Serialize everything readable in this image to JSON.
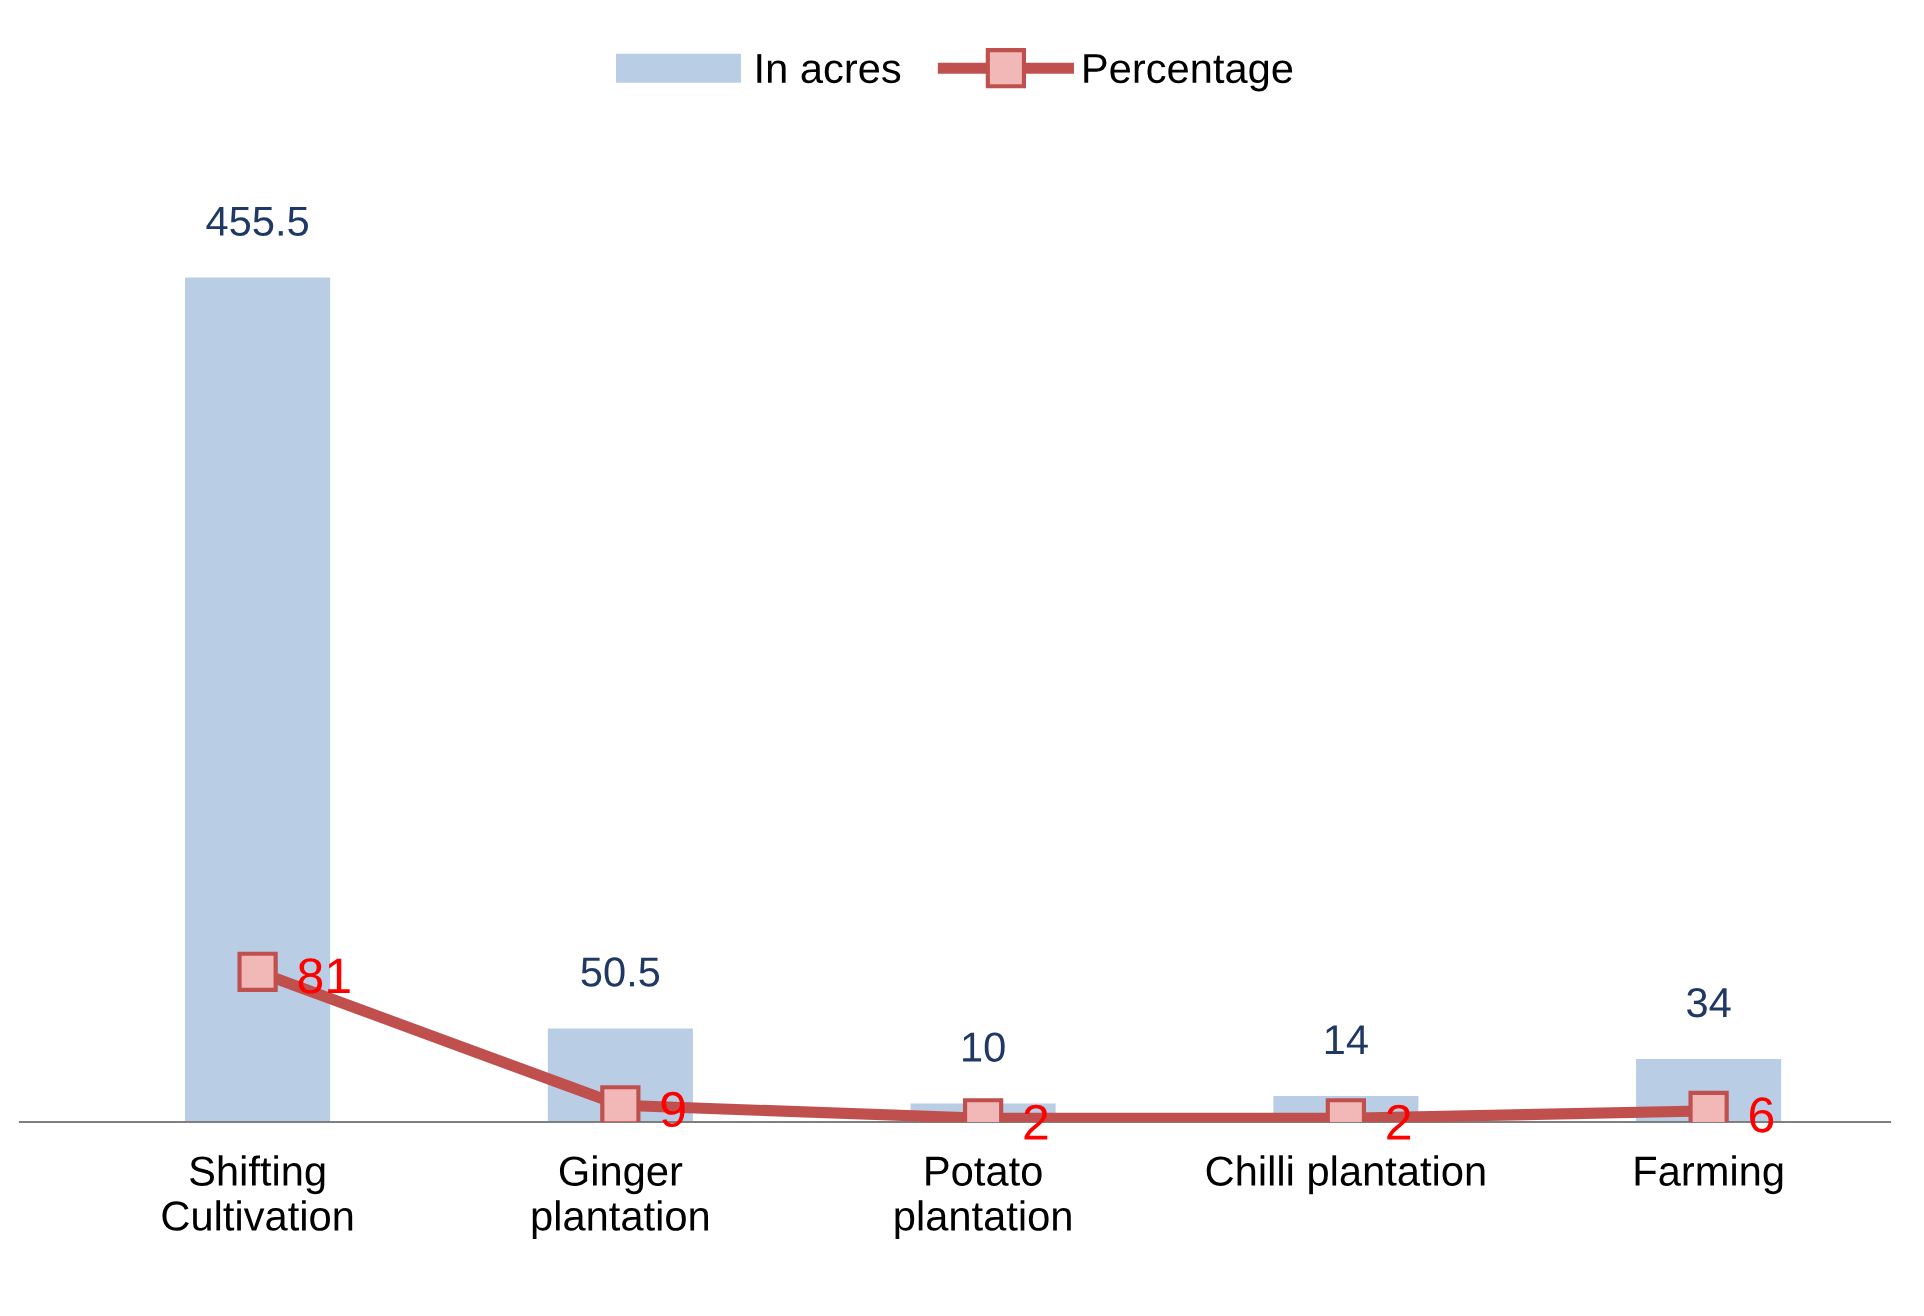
{
  "chart_data": {
    "type": "bar",
    "categories": [
      "Shifting\nCultivation",
      "Ginger\nplantation",
      "Potato\nplantation",
      "Chilli plantation",
      "Farming"
    ],
    "series": [
      {
        "name": "In acres",
        "color": "#b9cde5",
        "values": [
          455.5,
          50.5,
          10,
          14,
          34
        ]
      },
      {
        "name": "Percentage",
        "type": "line",
        "color": "#c0504d",
        "values": [
          81,
          9,
          2,
          2,
          6
        ]
      }
    ],
    "data_labels": true,
    "legend": "top",
    "marker": "square",
    "line_style": "solid",
    "grid": false
  }
}
